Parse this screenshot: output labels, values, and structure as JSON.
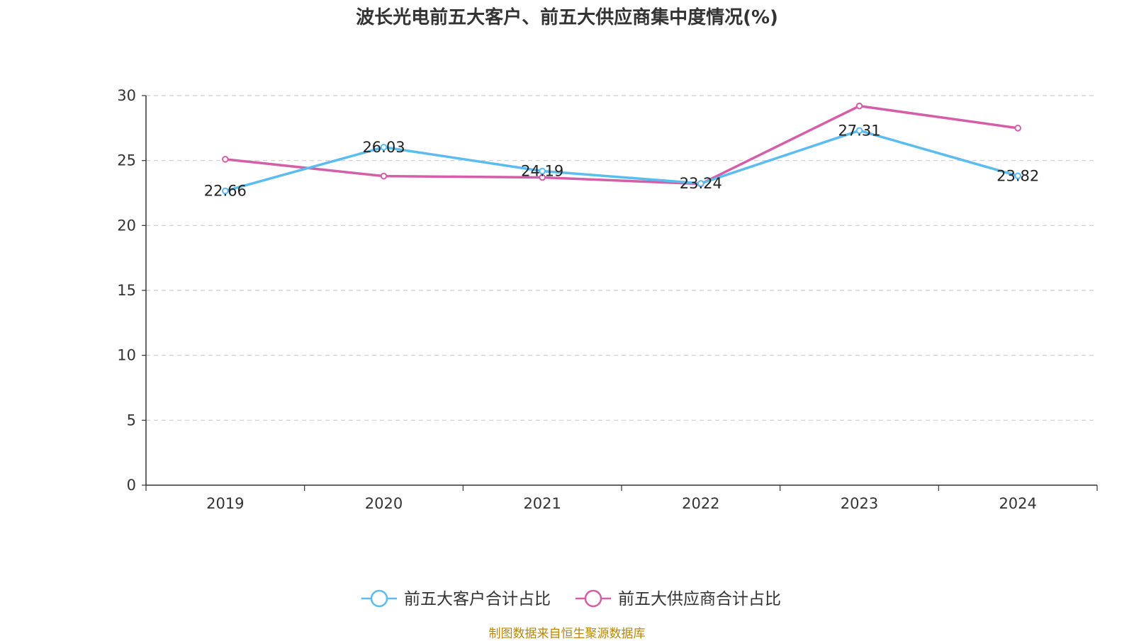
{
  "chart_data": {
    "type": "line",
    "title": "波长光电前五大客户、前五大供应商集中度情况(%)",
    "categories": [
      "2019",
      "2020",
      "2021",
      "2022",
      "2023",
      "2024"
    ],
    "series": [
      {
        "name": "前五大客户合计占比",
        "color": "#5bbcef",
        "values": [
          22.66,
          26.03,
          24.19,
          23.24,
          27.31,
          23.82
        ],
        "show_labels": true
      },
      {
        "name": "前五大供应商合计占比",
        "color": "#d45ea8",
        "values": [
          25.1,
          23.8,
          23.7,
          23.2,
          29.2,
          27.5
        ],
        "show_labels": false
      }
    ],
    "ylim": [
      0,
      30
    ],
    "yticks": [
      "0",
      "5",
      "10",
      "15",
      "20",
      "25",
      "30"
    ],
    "grid": "horizontal dashed",
    "legend_position": "bottom-center"
  },
  "source": "制图数据来自恒生聚源数据库"
}
